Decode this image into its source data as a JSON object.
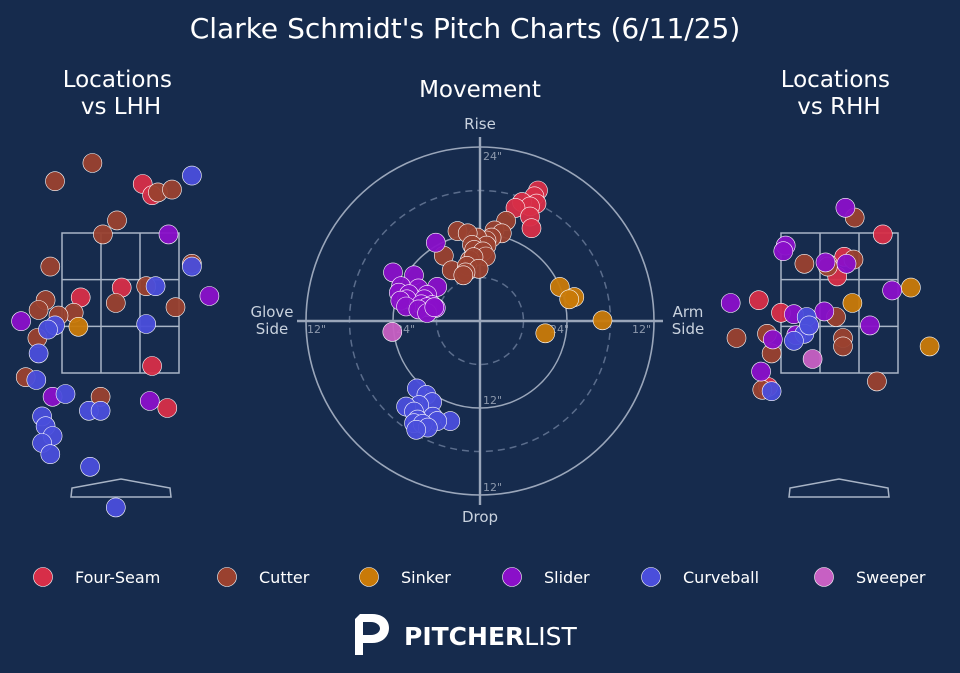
{
  "title": "Clarke Schmidt's Pitch Charts (6/11/25)",
  "colors": {
    "background": "#162b4d",
    "Four-Seam": "#d72e48",
    "Cutter": "#9a412f",
    "Sinker": "#c97a08",
    "Slider": "#8a10c9",
    "Curveball": "#4a4edb",
    "Sweeper": "#c760c3"
  },
  "legend": [
    {
      "name": "Four-Seam"
    },
    {
      "name": "Cutter"
    },
    {
      "name": "Sinker"
    },
    {
      "name": "Slider"
    },
    {
      "name": "Curveball"
    },
    {
      "name": "Sweeper"
    }
  ],
  "brand": {
    "bold": "PITCHER",
    "light": "LIST",
    "icon": "pitcherlist-logo-icon"
  },
  "chart_data": [
    {
      "type": "scatter",
      "title": "Locations\nvs LHH",
      "units": "normalized strike zone: x 0-1 left to right, y 0 bottom to 1 top",
      "series": [
        {
          "name": "Four-Seam",
          "points": [
            [
              0.69,
              1.35
            ],
            [
              0.77,
              1.27
            ],
            [
              0.77,
              0.05
            ],
            [
              0.16,
              0.54
            ],
            [
              0.51,
              0.61
            ],
            [
              0.9,
              -0.25
            ]
          ]
        },
        {
          "name": "Cutter",
          "points": [
            [
              0.26,
              1.5
            ],
            [
              -0.06,
              1.37
            ],
            [
              0.82,
              1.29
            ],
            [
              0.94,
              1.31
            ],
            [
              0.47,
              1.09
            ],
            [
              0.35,
              0.99
            ],
            [
              1.11,
              0.78
            ],
            [
              -0.1,
              0.76
            ],
            [
              -0.14,
              0.52
            ],
            [
              0.72,
              0.62
            ],
            [
              0.97,
              0.47
            ],
            [
              -0.2,
              0.45
            ],
            [
              0.46,
              0.5
            ],
            [
              0.1,
              0.43
            ],
            [
              -0.21,
              0.25
            ],
            [
              -0.31,
              -0.03
            ],
            [
              0.33,
              -0.17
            ],
            [
              -0.03,
              0.41
            ]
          ]
        },
        {
          "name": "Sinker",
          "points": [
            [
              0.14,
              0.33
            ]
          ]
        },
        {
          "name": "Slider",
          "points": [
            [
              0.91,
              0.99
            ],
            [
              1.26,
              0.55
            ],
            [
              -0.35,
              0.37
            ],
            [
              -0.08,
              -0.17
            ],
            [
              0.75,
              -0.2
            ]
          ]
        },
        {
          "name": "Curveball",
          "points": [
            [
              1.11,
              1.41
            ],
            [
              1.11,
              0.76
            ],
            [
              0.8,
              0.62
            ],
            [
              0.72,
              0.35
            ],
            [
              -0.06,
              0.34
            ],
            [
              -0.12,
              0.31
            ],
            [
              -0.2,
              0.14
            ],
            [
              -0.22,
              -0.05
            ],
            [
              0.03,
              -0.15
            ],
            [
              0.23,
              -0.27
            ],
            [
              0.33,
              -0.27
            ],
            [
              -0.17,
              -0.31
            ],
            [
              -0.14,
              -0.38
            ],
            [
              -0.08,
              -0.45
            ],
            [
              -0.17,
              -0.5
            ],
            [
              -0.1,
              -0.58
            ],
            [
              0.24,
              -0.67
            ],
            [
              0.46,
              -0.96
            ]
          ]
        }
      ]
    },
    {
      "type": "scatter",
      "title": "Movement",
      "xlabel": "Glove Side / Arm Side",
      "ylabel": "Drop / Rise",
      "axis_labels": {
        "top": "Rise",
        "bottom": "Drop",
        "left": "Glove\nSide",
        "right": "Arm\nSide"
      },
      "ring_labels": [
        "24\"",
        "12\"",
        "12\"",
        "24\"",
        "24\"",
        "12\"",
        "12\"",
        "24\""
      ],
      "xlim": [
        -24,
        24
      ],
      "ylim": [
        -24,
        24
      ],
      "units": "inches",
      "series": [
        {
          "name": "Four-Seam",
          "points": [
            [
              8.0,
              18.0
            ],
            [
              7.5,
              17.2
            ],
            [
              7.8,
              16.2
            ],
            [
              5.8,
              16.4
            ],
            [
              6.9,
              15.8
            ],
            [
              4.9,
              15.6
            ],
            [
              6.9,
              14.4
            ],
            [
              7.1,
              12.8
            ]
          ]
        },
        {
          "name": "Cutter",
          "points": [
            [
              3.6,
              13.8
            ],
            [
              2.0,
              12.5
            ],
            [
              3.0,
              12.1
            ],
            [
              1.6,
              11.5
            ],
            [
              0.9,
              11.1
            ],
            [
              -0.4,
              11.5
            ],
            [
              -3.1,
              12.4
            ],
            [
              -1.7,
              12.1
            ],
            [
              0.9,
              10.4
            ],
            [
              -1.1,
              10.5
            ],
            [
              -0.8,
              9.8
            ],
            [
              0.4,
              9.6
            ],
            [
              0.8,
              8.9
            ],
            [
              -5.0,
              9.0
            ],
            [
              -1.4,
              8.4
            ],
            [
              -0.9,
              8.8
            ],
            [
              -3.9,
              7.0
            ],
            [
              -1.8,
              7.6
            ],
            [
              -0.2,
              7.2
            ],
            [
              -2.0,
              6.7
            ],
            [
              -2.3,
              6.3
            ]
          ]
        },
        {
          "name": "Sinker",
          "points": [
            [
              11.0,
              4.7
            ],
            [
              13.0,
              3.3
            ],
            [
              12.3,
              3.0
            ],
            [
              16.9,
              0.1
            ],
            [
              9.0,
              -1.7
            ]
          ]
        },
        {
          "name": "Slider",
          "points": [
            [
              -6.1,
              10.8
            ],
            [
              -12.0,
              6.7
            ],
            [
              -9.1,
              6.3
            ],
            [
              -10.9,
              4.8
            ],
            [
              -5.9,
              4.7
            ],
            [
              -8.5,
              4.5
            ],
            [
              -11.2,
              3.9
            ],
            [
              -9.8,
              3.7
            ],
            [
              -7.3,
              3.6
            ],
            [
              -7.7,
              3.0
            ],
            [
              -10.1,
              3.0
            ],
            [
              -11.0,
              2.8
            ],
            [
              -8.1,
              2.3
            ],
            [
              -6.6,
              2.2
            ],
            [
              -10.2,
              2.0
            ],
            [
              -7.3,
              1.9
            ],
            [
              -6.1,
              1.8
            ],
            [
              -8.5,
              1.6
            ],
            [
              -7.3,
              1.1
            ],
            [
              -6.3,
              1.9
            ]
          ]
        },
        {
          "name": "Curveball",
          "points": [
            [
              -8.7,
              -9.3
            ],
            [
              -7.4,
              -10.2
            ],
            [
              -6.6,
              -11.2
            ],
            [
              -8.4,
              -11.6
            ],
            [
              -10.2,
              -11.8
            ],
            [
              -9.1,
              -12.5
            ],
            [
              -6.5,
              -13.2
            ],
            [
              -8.6,
              -13.6
            ],
            [
              -9.1,
              -14.1
            ],
            [
              -4.1,
              -13.8
            ],
            [
              -5.9,
              -13.8
            ],
            [
              -7.9,
              -14.2
            ],
            [
              -7.2,
              -14.7
            ],
            [
              -8.8,
              -15.0
            ]
          ]
        },
        {
          "name": "Sweeper",
          "points": [
            [
              -12.1,
              -1.5
            ]
          ]
        }
      ]
    },
    {
      "type": "scatter",
      "title": "Locations\nvs RHH",
      "units": "normalized strike zone: x 0-1 left to right, y 0 bottom to 1 top",
      "series": [
        {
          "name": "Four-Seam",
          "points": [
            [
              0.87,
              0.99
            ],
            [
              0.54,
              0.83
            ],
            [
              0.48,
              0.69
            ],
            [
              -0.19,
              0.52
            ],
            [
              0.0,
              0.43
            ],
            [
              -0.11,
              -0.1
            ]
          ]
        },
        {
          "name": "Cutter",
          "points": [
            [
              0.63,
              1.11
            ],
            [
              0.2,
              0.78
            ],
            [
              0.4,
              0.78
            ],
            [
              0.62,
              0.81
            ],
            [
              0.4,
              0.76
            ],
            [
              0.47,
              0.4
            ],
            [
              -0.38,
              0.25
            ],
            [
              -0.12,
              0.28
            ],
            [
              -0.08,
              0.14
            ],
            [
              0.53,
              0.25
            ],
            [
              0.53,
              0.19
            ],
            [
              0.82,
              -0.06
            ],
            [
              -0.16,
              -0.12
            ]
          ]
        },
        {
          "name": "Sinker",
          "points": [
            [
              1.11,
              0.61
            ],
            [
              0.61,
              0.5
            ],
            [
              1.27,
              0.19
            ]
          ]
        },
        {
          "name": "Slider",
          "points": [
            [
              0.55,
              1.18
            ],
            [
              0.04,
              0.91
            ],
            [
              0.02,
              0.87
            ],
            [
              0.38,
              0.79
            ],
            [
              0.56,
              0.78
            ],
            [
              0.95,
              0.59
            ],
            [
              -0.43,
              0.5
            ],
            [
              0.11,
              0.42
            ],
            [
              0.37,
              0.44
            ],
            [
              0.24,
              0.34
            ],
            [
              0.76,
              0.34
            ],
            [
              -0.07,
              0.24
            ],
            [
              0.13,
              0.27
            ],
            [
              -0.17,
              0.01
            ]
          ]
        },
        {
          "name": "Curveball",
          "points": [
            [
              0.22,
              0.4
            ],
            [
              0.2,
              0.28
            ],
            [
              0.24,
              0.34
            ],
            [
              0.11,
              0.23
            ],
            [
              -0.08,
              -0.13
            ]
          ]
        },
        {
          "name": "Sweeper",
          "points": [
            [
              0.27,
              0.1
            ]
          ]
        }
      ]
    }
  ]
}
